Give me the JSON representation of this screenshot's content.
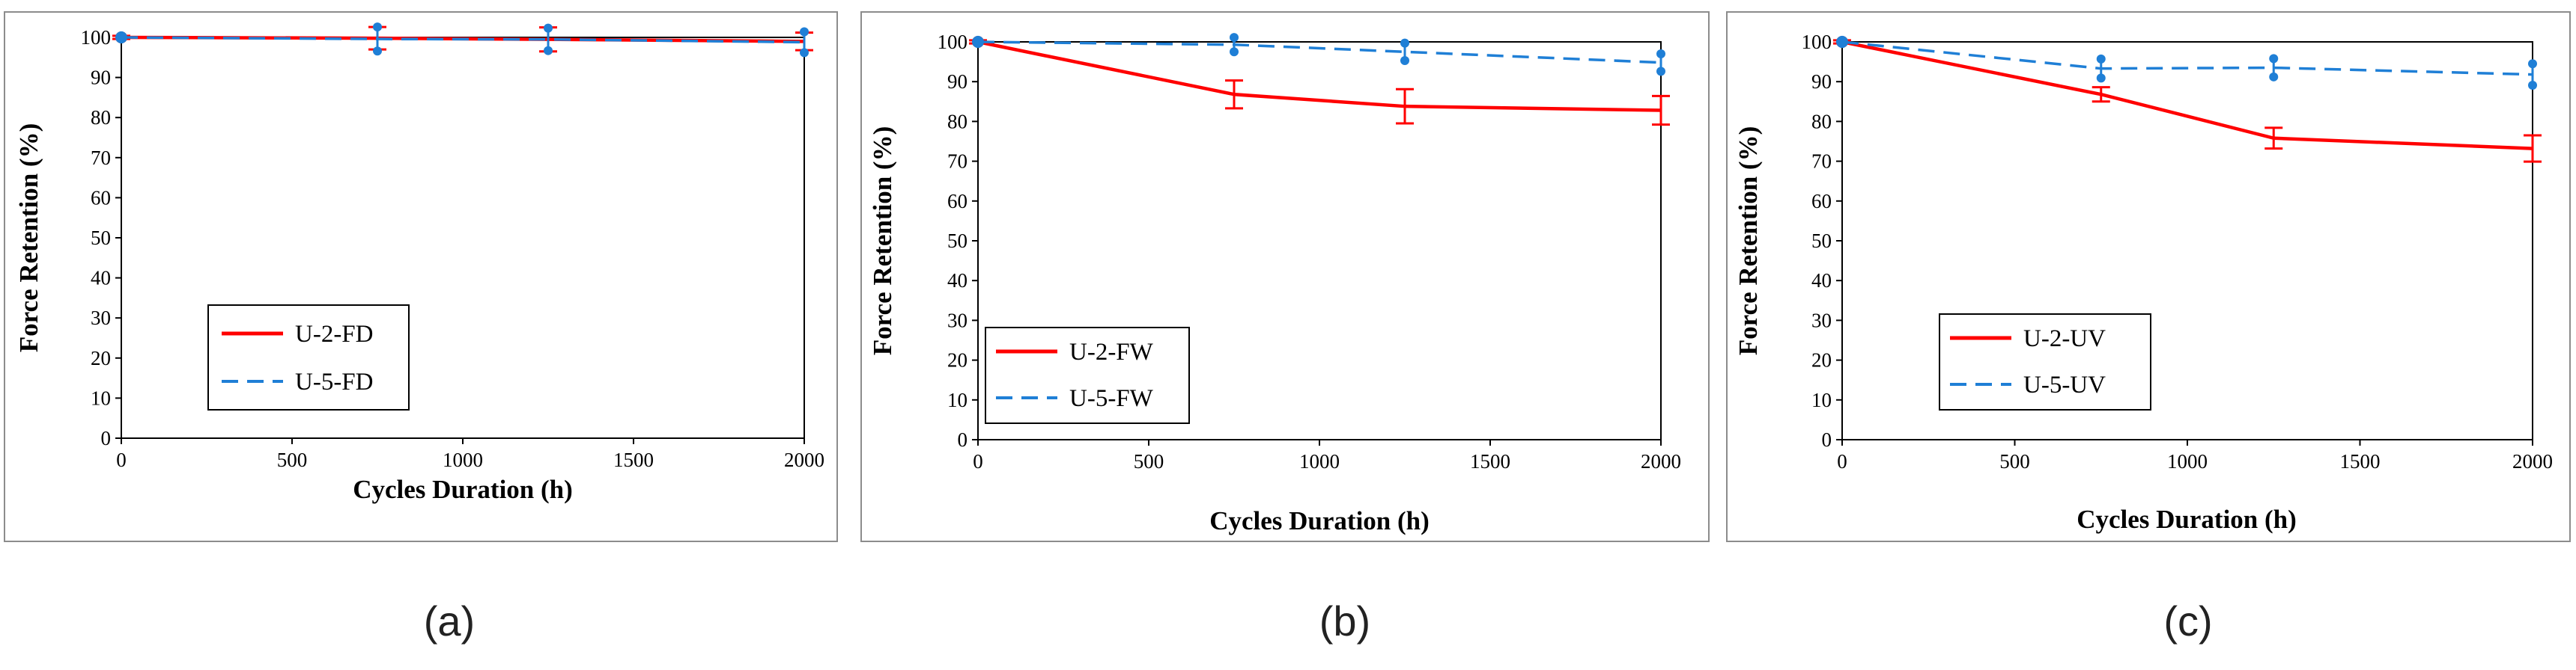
{
  "figure": {
    "panel_labels": [
      "(a)",
      "(b)",
      "(c)"
    ]
  },
  "chart_data": [
    {
      "type": "line",
      "panel_label": "(a)",
      "xlabel": "Cycles Duration (h)",
      "ylabel": "Force Retention (%)",
      "xlim": [
        0,
        2000
      ],
      "ylim": [
        0,
        100
      ],
      "xticks": [
        0,
        500,
        1000,
        1500,
        2000
      ],
      "yticks": [
        0,
        10,
        20,
        30,
        40,
        50,
        60,
        70,
        80,
        90,
        100
      ],
      "legend_position": "center-left",
      "series": [
        {
          "name": "U-2-FD",
          "color": "#ff0000",
          "style": "solid",
          "marker": "cap",
          "x": [
            0,
            750,
            1250,
            2000
          ],
          "values": [
            100,
            99.8,
            99.5,
            99
          ],
          "err": [
            0.4,
            2.8,
            3.0,
            2.2
          ]
        },
        {
          "name": "U-5-FD",
          "color": "#1f7fd6",
          "style": "dashed",
          "marker": "dot",
          "x": [
            0,
            750,
            1250,
            2000
          ],
          "values": [
            100,
            99.6,
            99.5,
            98.8
          ],
          "err": [
            0.4,
            3.0,
            2.8,
            2.6
          ]
        }
      ]
    },
    {
      "type": "line",
      "panel_label": "(b)",
      "xlabel": "Cycles Duration (h)",
      "ylabel": "Force Retention (%)",
      "xlim": [
        0,
        2000
      ],
      "ylim": [
        0,
        100
      ],
      "xticks": [
        0,
        500,
        1000,
        1500,
        2000
      ],
      "yticks": [
        0,
        10,
        20,
        30,
        40,
        50,
        60,
        70,
        80,
        90,
        100
      ],
      "legend_position": "bottom-left",
      "series": [
        {
          "name": "U-2-FW",
          "color": "#ff0000",
          "style": "solid",
          "marker": "cap",
          "x": [
            0,
            750,
            1250,
            2000
          ],
          "values": [
            100,
            86.8,
            83.8,
            82.8
          ],
          "err": [
            0.4,
            3.5,
            4.3,
            3.6
          ]
        },
        {
          "name": "U-5-FW",
          "color": "#1f7fd6",
          "style": "dashed",
          "marker": "dot",
          "x": [
            0,
            750,
            1250,
            2000
          ],
          "values": [
            100,
            99.3,
            97.5,
            94.8
          ],
          "err": [
            0.4,
            1.8,
            2.2,
            2.2
          ]
        }
      ]
    },
    {
      "type": "line",
      "panel_label": "(c)",
      "xlabel": "Cycles Duration (h)",
      "ylabel": "Force Retention (%)",
      "xlim": [
        0,
        2000
      ],
      "ylim": [
        0,
        100
      ],
      "xticks": [
        0,
        500,
        1000,
        1500,
        2000
      ],
      "yticks": [
        0,
        10,
        20,
        30,
        40,
        50,
        60,
        70,
        80,
        90,
        100
      ],
      "legend_position": "bottom-left",
      "series": [
        {
          "name": "U-2-UV",
          "color": "#ff0000",
          "style": "solid",
          "marker": "cap",
          "x": [
            0,
            750,
            1250,
            2000
          ],
          "values": [
            100,
            86.8,
            75.8,
            73.2
          ],
          "err": [
            0.4,
            1.8,
            2.6,
            3.3
          ]
        },
        {
          "name": "U-5-UV",
          "color": "#1f7fd6",
          "style": "dashed",
          "marker": "dot",
          "x": [
            0,
            750,
            1250,
            2000
          ],
          "values": [
            100,
            93.3,
            93.5,
            91.8
          ],
          "err": [
            0.4,
            2.4,
            2.3,
            2.7
          ]
        }
      ]
    }
  ]
}
